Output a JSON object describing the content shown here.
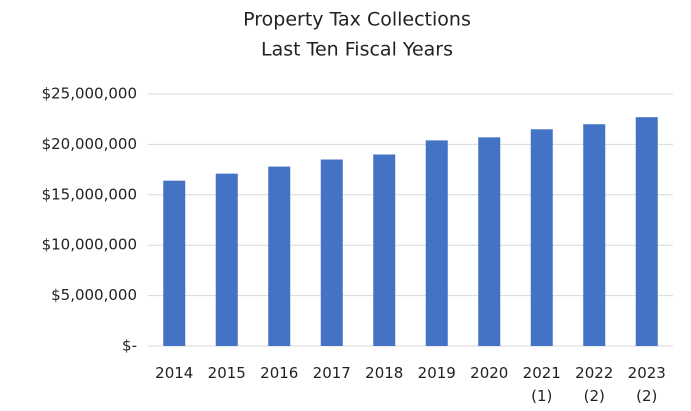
{
  "chart_data": {
    "type": "bar",
    "title": "Property Tax Collections",
    "subtitle": "Last Ten Fiscal Years",
    "categories": [
      "2014",
      "2015",
      "2016",
      "2017",
      "2018",
      "2019",
      "2020",
      "2021\n(1)",
      "2022\n(2)",
      "2023\n(2)"
    ],
    "values": [
      16400000,
      17100000,
      17800000,
      18500000,
      19000000,
      20400000,
      20700000,
      21500000,
      22000000,
      22700000
    ],
    "color": "#4472c4",
    "ylim": [
      0,
      25000000
    ],
    "yticks": [
      {
        "value": 0,
        "label": "$-"
      },
      {
        "value": 5000000,
        "label": "$5,000,000"
      },
      {
        "value": 10000000,
        "label": "$10,000,000"
      },
      {
        "value": 15000000,
        "label": "$15,000,000"
      },
      {
        "value": 20000000,
        "label": "$20,000,000"
      },
      {
        "value": 25000000,
        "label": "$25,000,000"
      }
    ],
    "grid": true
  }
}
